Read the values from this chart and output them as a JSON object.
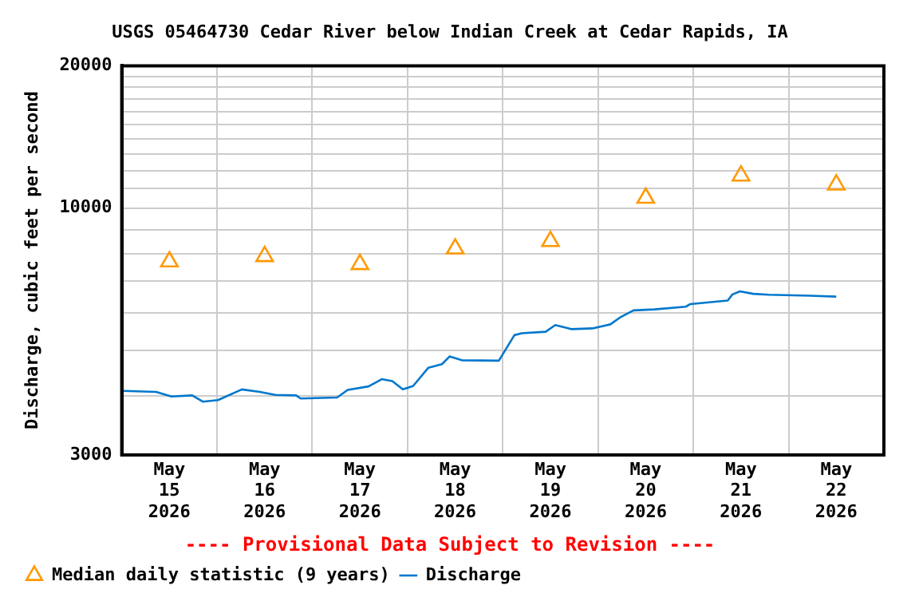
{
  "chart_data": {
    "type": "line",
    "title": "USGS 05464730 Cedar River below Indian Creek at Cedar Rapids, IA",
    "ylabel": "Discharge, cubic feet per second",
    "annotations": [
      "---- Provisional Data Subject to Revision ----"
    ],
    "log": true,
    "grid": true,
    "legend": "bottom",
    "xlim": [
      "2026-05-15T00:00",
      "2026-05-23T00:00"
    ],
    "ylim": [
      3000,
      20000
    ],
    "xticks": [
      {
        "value": "2026-05-15T12:00",
        "label": "May\n15\n2026"
      },
      {
        "value": "2026-05-16T00:00",
        "label": null
      },
      {
        "value": "2026-05-16T12:00",
        "label": "May\n16\n2026"
      },
      {
        "value": "2026-05-17T00:00",
        "label": null
      },
      {
        "value": "2026-05-17T12:00",
        "label": "May\n17\n2026"
      },
      {
        "value": "2026-05-18T00:00",
        "label": null
      },
      {
        "value": "2026-05-18T12:00",
        "label": "May\n18\n2026"
      },
      {
        "value": "2026-05-19T00:00",
        "label": null
      },
      {
        "value": "2026-05-19T12:00",
        "label": "May\n19\n2026"
      },
      {
        "value": "2026-05-20T00:00",
        "label": null
      },
      {
        "value": "2026-05-20T12:00",
        "label": "May\n20\n2026"
      },
      {
        "value": "2026-05-21T00:00",
        "label": null
      },
      {
        "value": "2026-05-21T12:00",
        "label": "May\n21\n2026"
      },
      {
        "value": "2026-05-22T00:00",
        "label": null
      },
      {
        "value": "2026-05-22T12:00",
        "label": "May\n22\n2026"
      }
    ],
    "yticks": [
      3000,
      {
        "value": 4000,
        "label": null
      },
      {
        "value": 5000,
        "label": null
      },
      {
        "value": 6000,
        "label": null
      },
      {
        "value": 7000,
        "label": null
      },
      {
        "value": 8000,
        "label": null
      },
      {
        "value": 9000,
        "label": null
      },
      10000,
      {
        "value": 11000,
        "label": null
      },
      {
        "value": 12000,
        "label": null
      },
      {
        "value": 13000,
        "label": null
      },
      {
        "value": 14000,
        "label": null
      },
      {
        "value": 15000,
        "label": null
      },
      {
        "value": 16000,
        "label": null
      },
      {
        "value": 17000,
        "label": null
      },
      {
        "value": 18000,
        "label": null
      },
      {
        "value": 19000,
        "label": null
      },
      20000
    ],
    "series": [
      {
        "name": "Median daily statistic (9 years)",
        "type": "scatter",
        "marker": "triangle",
        "color": "#ff9900",
        "x": [
          "2026-05-15T12:00",
          "2026-05-16T12:00",
          "2026-05-17T12:00",
          "2026-05-18T12:00",
          "2026-05-19T12:00",
          "2026-05-20T12:00",
          "2026-05-21T12:00",
          "2026-05-22T12:00"
        ],
        "values": [
          7700,
          7900,
          7600,
          8200,
          8500,
          10500,
          11700,
          11200
        ]
      },
      {
        "name": "Discharge",
        "marker": "none",
        "color": "#0077cc",
        "x": [
          "2026-05-15T00:30",
          "2026-05-15T08:40",
          "2026-05-15T12:30",
          "2026-05-15T17:45",
          "2026-05-15T20:25",
          "2026-05-16T00:15",
          "2026-05-16T06:15",
          "2026-05-16T10:48",
          "2026-05-16T14:40",
          "2026-05-16T19:55",
          "2026-05-16T21:05",
          "2026-05-17T06:15",
          "2026-05-17T08:55",
          "2026-05-17T14:10",
          "2026-05-17T17:30",
          "2026-05-17T20:10",
          "2026-05-17T22:48",
          "2026-05-18T01:25",
          "2026-05-18T05:15",
          "2026-05-18T08:40",
          "2026-05-18T10:35",
          "2026-05-18T13:40",
          "2026-05-18T23:00",
          "2026-05-19T02:55",
          "2026-05-19T04:48",
          "2026-05-19T10:48",
          "2026-05-19T13:12",
          "2026-05-19T17:15",
          "2026-05-19T22:35",
          "2026-05-20T03:05",
          "2026-05-20T05:45",
          "2026-05-20T08:55",
          "2026-05-20T14:10",
          "2026-05-20T22:05",
          "2026-05-20T23:15",
          "2026-05-21T08:40",
          "2026-05-21T09:50",
          "2026-05-21T11:45",
          "2026-05-21T15:05",
          "2026-05-21T19:00",
          "2026-05-22T05:30",
          "2026-05-22T12:00"
        ],
        "values": [
          4100,
          4080,
          3990,
          4010,
          3890,
          3920,
          4130,
          4080,
          4020,
          4010,
          3950,
          3970,
          4120,
          4190,
          4340,
          4300,
          4130,
          4200,
          4590,
          4670,
          4850,
          4760,
          4750,
          5380,
          5430,
          5470,
          5650,
          5540,
          5560,
          5670,
          5880,
          6070,
          6100,
          6180,
          6260,
          6370,
          6560,
          6660,
          6580,
          6550,
          6520,
          6490
        ]
      }
    ]
  }
}
